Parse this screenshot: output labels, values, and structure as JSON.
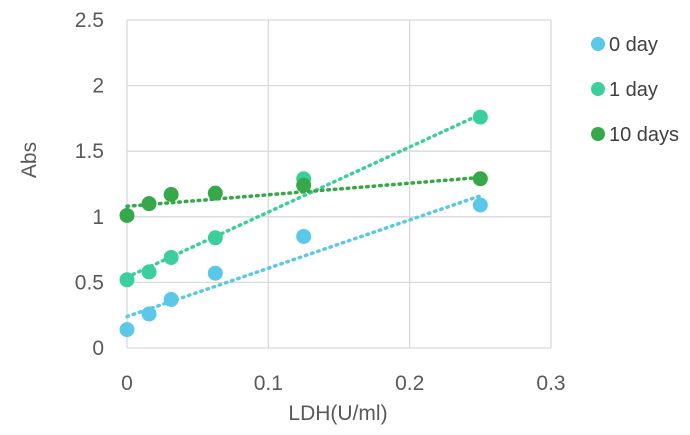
{
  "chart_data": {
    "type": "scatter",
    "title": "",
    "xlabel": "LDH(U/ml)",
    "ylabel": "Abs",
    "xlim": [
      0,
      0.3
    ],
    "ylim": [
      0,
      2.5
    ],
    "xticks": [
      0,
      0.1,
      0.2,
      0.3
    ],
    "xtick_labels": [
      "0",
      "0.1",
      "0.2",
      "0.3"
    ],
    "yticks": [
      0,
      0.5,
      1,
      1.5,
      2,
      2.5
    ],
    "ytick_labels": [
      "0",
      "0.5",
      "1",
      "1.5",
      "2",
      "2.5"
    ],
    "grid": true,
    "legend_position": "right",
    "trendlines": "linear, dotted",
    "series": [
      {
        "name": "0 day",
        "color": "#5bc8ea",
        "x": [
          0,
          0.0156,
          0.03125,
          0.0625,
          0.125,
          0.25
        ],
        "y": [
          0.14,
          0.26,
          0.37,
          0.57,
          0.85,
          1.09
        ],
        "trend_x": [
          0,
          0.25
        ],
        "trend_y": [
          0.24,
          1.16
        ]
      },
      {
        "name": "1 day",
        "color": "#3ccf9c",
        "x": [
          0,
          0.0156,
          0.03125,
          0.0625,
          0.125,
          0.25
        ],
        "y": [
          0.52,
          0.58,
          0.69,
          0.84,
          1.29,
          1.76
        ],
        "trend_x": [
          0,
          0.25
        ],
        "trend_y": [
          0.54,
          1.78
        ]
      },
      {
        "name": "10 days",
        "color": "#36a84a",
        "x": [
          0,
          0.0156,
          0.03125,
          0.0625,
          0.125,
          0.25
        ],
        "y": [
          1.01,
          1.1,
          1.17,
          1.18,
          1.24,
          1.29
        ],
        "trend_x": [
          0,
          0.25
        ],
        "trend_y": [
          1.08,
          1.3
        ]
      }
    ]
  }
}
